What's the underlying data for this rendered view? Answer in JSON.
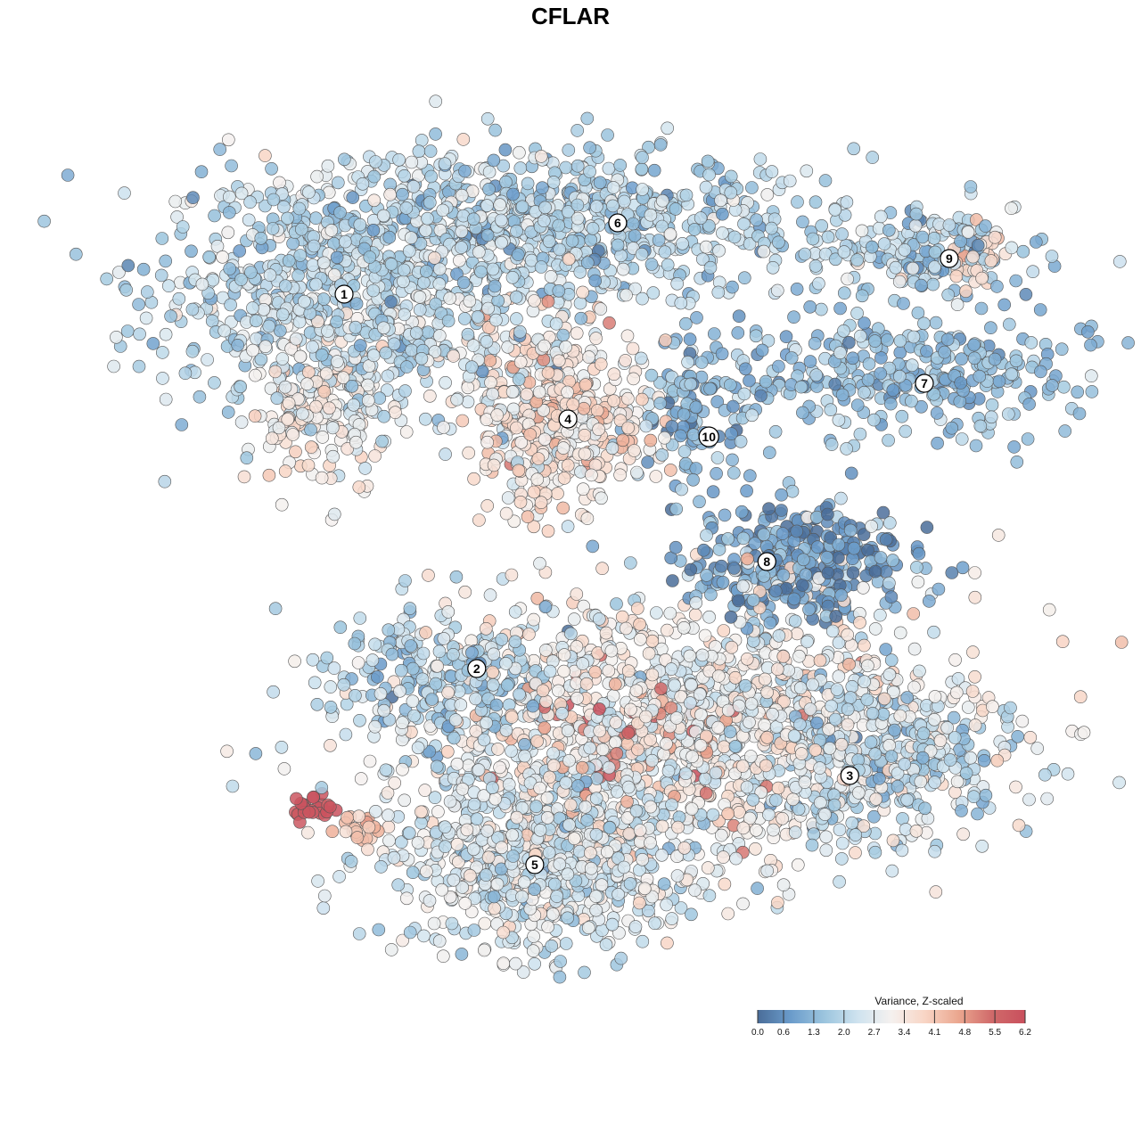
{
  "chart_data": {
    "type": "scatter",
    "title": "CFLAR",
    "xlabel": "",
    "ylabel": "",
    "grid": false,
    "axes_visible": false,
    "legend": {
      "title": "Variance, Z-scaled",
      "ticks": [
        "0.0",
        "0.6",
        "1.3",
        "2.0",
        "2.7",
        "3.4",
        "4.1",
        "4.8",
        "5.5",
        "6.2"
      ],
      "range": [
        0.0,
        6.2
      ],
      "placement": "bottom-right",
      "colors": [
        "#4a6d99",
        "#6b9ccb",
        "#9cc5de",
        "#cfe3ef",
        "#f5f1ef",
        "#f8d5c5",
        "#eba78f",
        "#d06a6a",
        "#c9505d"
      ]
    },
    "marker": {
      "fill_opacity": 0.85,
      "stroke": "#555555"
    },
    "clusters": [
      {
        "label": "1",
        "x": 2.0,
        "y": 6.6,
        "mean": 2.3
      },
      {
        "label": "2",
        "x": 3.6,
        "y": 2.4,
        "mean": 2.1
      },
      {
        "label": "3",
        "x": 8.1,
        "y": 1.2,
        "mean": 2.8
      },
      {
        "label": "4",
        "x": 4.7,
        "y": 5.2,
        "mean": 3.5
      },
      {
        "label": "5",
        "x": 4.3,
        "y": 0.2,
        "mean": 2.6
      },
      {
        "label": "6",
        "x": 5.3,
        "y": 7.4,
        "mean": 1.8
      },
      {
        "label": "7",
        "x": 9.0,
        "y": 5.6,
        "mean": 1.4
      },
      {
        "label": "8",
        "x": 7.1,
        "y": 3.6,
        "mean": 0.7
      },
      {
        "label": "9",
        "x": 9.3,
        "y": 7.0,
        "mean": 1.9
      },
      {
        "label": "10",
        "x": 6.4,
        "y": 5.0,
        "mean": 1.2
      }
    ],
    "point_groups": [
      {
        "cluster": "1",
        "n": 900,
        "cx": 2.2,
        "cy": 6.6,
        "sx": 1.2,
        "sy": 0.7,
        "mean": 2.1,
        "sd": 0.6
      },
      {
        "cluster": "1",
        "n": 160,
        "cx": 1.7,
        "cy": 5.3,
        "sx": 0.45,
        "sy": 0.4,
        "mean": 3.2,
        "sd": 0.5
      },
      {
        "cluster": "6",
        "n": 650,
        "cx": 4.9,
        "cy": 7.4,
        "sx": 1.4,
        "sy": 0.4,
        "mean": 1.9,
        "sd": 0.6
      },
      {
        "cluster": "9",
        "n": 180,
        "cx": 8.9,
        "cy": 7.1,
        "sx": 0.65,
        "sy": 0.25,
        "mean": 1.9,
        "sd": 0.6
      },
      {
        "cluster": "9",
        "n": 30,
        "cx": 9.6,
        "cy": 7.0,
        "sx": 0.15,
        "sy": 0.2,
        "mean": 3.8,
        "sd": 0.3
      },
      {
        "cluster": "7",
        "n": 320,
        "cx": 8.8,
        "cy": 5.7,
        "sx": 1.2,
        "sy": 0.35,
        "mean": 1.4,
        "sd": 0.5
      },
      {
        "cluster": "4",
        "n": 420,
        "cx": 4.6,
        "cy": 5.2,
        "sx": 0.55,
        "sy": 0.55,
        "mean": 3.5,
        "sd": 0.6
      },
      {
        "cluster": "10",
        "n": 110,
        "cx": 6.3,
        "cy": 5.2,
        "sx": 0.35,
        "sy": 0.45,
        "mean": 1.1,
        "sd": 0.6
      },
      {
        "cluster": "8",
        "n": 300,
        "cx": 7.5,
        "cy": 3.6,
        "sx": 0.7,
        "sy": 0.35,
        "mean": 0.8,
        "sd": 0.6
      },
      {
        "cluster": "2",
        "n": 260,
        "cx": 3.2,
        "cy": 2.2,
        "sx": 0.75,
        "sy": 0.4,
        "mean": 1.8,
        "sd": 0.6
      },
      {
        "cluster": "3",
        "n": 1200,
        "cx": 6.3,
        "cy": 1.8,
        "sx": 1.7,
        "sy": 0.75,
        "mean": 3.0,
        "sd": 0.6
      },
      {
        "cluster": "3",
        "n": 90,
        "cx": 5.5,
        "cy": 1.5,
        "sx": 0.7,
        "sy": 0.45,
        "mean": 4.8,
        "sd": 0.7
      },
      {
        "cluster": "3",
        "n": 300,
        "cx": 8.5,
        "cy": 1.3,
        "sx": 0.8,
        "sy": 0.45,
        "mean": 1.9,
        "sd": 0.6
      },
      {
        "cluster": "5",
        "n": 750,
        "cx": 4.4,
        "cy": 0.3,
        "sx": 0.95,
        "sy": 0.55,
        "mean": 2.5,
        "sd": 0.6
      },
      {
        "cluster": "",
        "n": 25,
        "cx": 1.6,
        "cy": 0.85,
        "sx": 0.13,
        "sy": 0.07,
        "mean": 6.0,
        "sd": 0.2
      },
      {
        "cluster": "",
        "n": 25,
        "cx": 2.2,
        "cy": 0.6,
        "sx": 0.15,
        "sy": 0.1,
        "mean": 4.0,
        "sd": 0.4
      }
    ]
  }
}
